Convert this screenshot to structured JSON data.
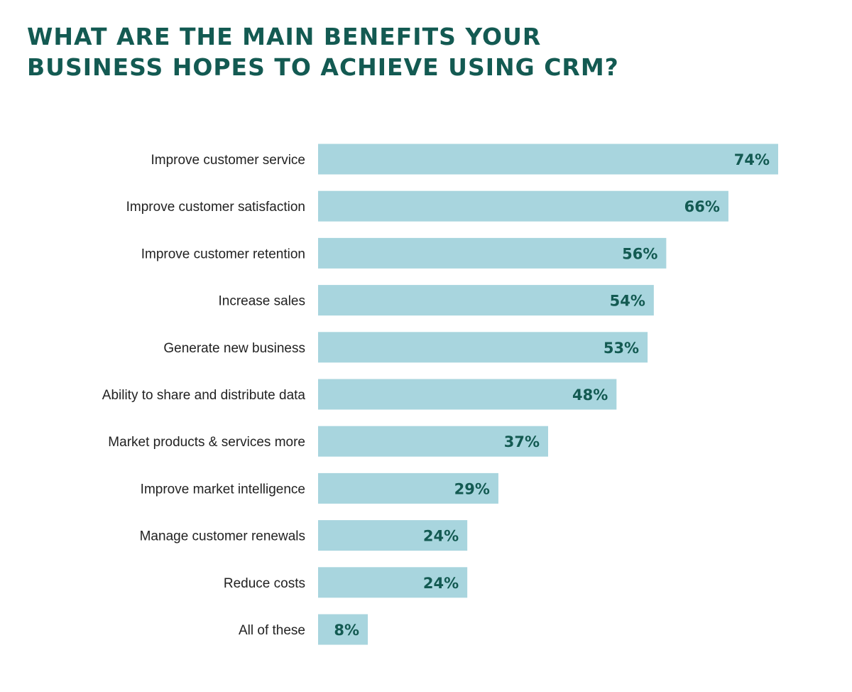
{
  "chart_data": {
    "type": "bar",
    "orientation": "horizontal",
    "title": [
      "WHAT ARE THE MAIN BENEFITS YOUR",
      "BUSINESS HOPES TO ACHIEVE USING CRM?"
    ],
    "categories": [
      "Improve customer service",
      "Improve customer satisfaction",
      "Improve customer retention",
      "Increase sales",
      "Generate new business",
      "Ability to share and distribute data",
      "Market products & services more",
      "Improve market intelligence",
      "Manage customer renewals",
      "Reduce costs",
      "All of these"
    ],
    "values": [
      74,
      66,
      56,
      54,
      53,
      48,
      37,
      29,
      24,
      24,
      8
    ],
    "data_labels": [
      "74%",
      "66%",
      "56%",
      "54%",
      "53%",
      "48%",
      "37%",
      "29%",
      "24%",
      "24%",
      "8%"
    ],
    "unit": "%",
    "xlim": [
      0,
      74
    ],
    "grid": false,
    "colors": {
      "bar": "#a8d5de",
      "label": "#135a52",
      "title": "#135a52"
    }
  }
}
